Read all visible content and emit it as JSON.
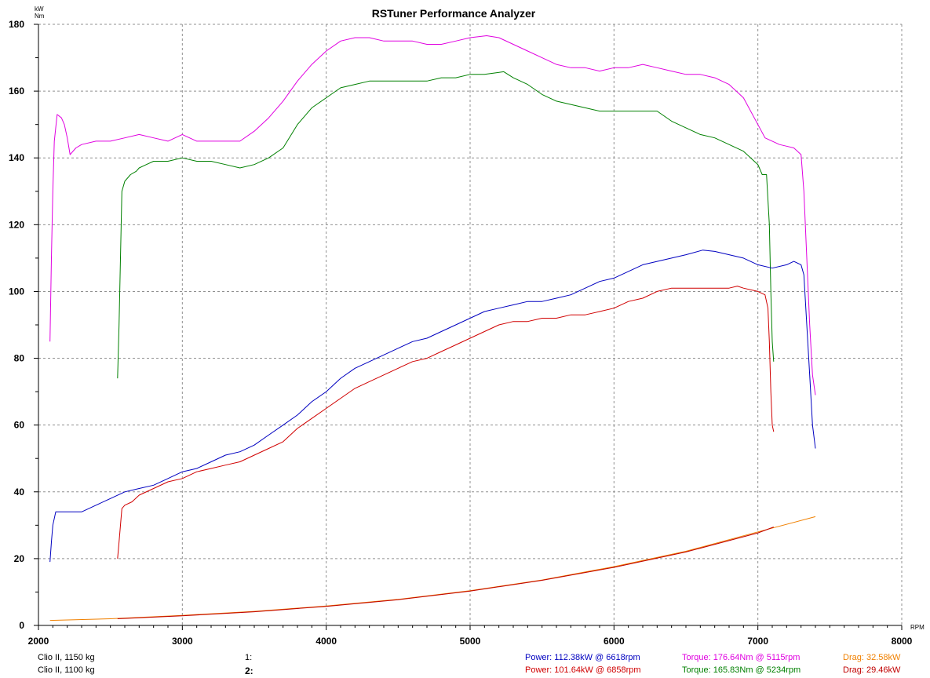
{
  "chart_data": {
    "type": "line",
    "title": "RSTuner Performance Analyzer",
    "ylabel_top": "kW",
    "ylabel_bottom": "Nm",
    "xlabel": "RPM",
    "xlim": [
      2000,
      8000
    ],
    "ylim": [
      0,
      180
    ],
    "x_ticks": [
      2000,
      3000,
      4000,
      5000,
      6000,
      7000,
      8000
    ],
    "y_ticks": [
      0,
      20,
      40,
      60,
      80,
      100,
      120,
      140,
      160,
      180
    ],
    "grid": true,
    "series": [
      {
        "name": "Torque 1",
        "color": "#e000e0",
        "x": [
          2080,
          2090,
          2100,
          2110,
          2130,
          2160,
          2180,
          2200,
          2220,
          2260,
          2300,
          2400,
          2500,
          2600,
          2700,
          2800,
          2900,
          3000,
          3100,
          3200,
          3300,
          3400,
          3500,
          3600,
          3700,
          3800,
          3900,
          4000,
          4100,
          4200,
          4300,
          4400,
          4500,
          4600,
          4700,
          4800,
          4900,
          5000,
          5115,
          5200,
          5300,
          5400,
          5500,
          5600,
          5700,
          5800,
          5900,
          6000,
          6100,
          6200,
          6300,
          6400,
          6500,
          6600,
          6700,
          6800,
          6900,
          7000,
          7050,
          7100,
          7150,
          7200,
          7250,
          7300,
          7320,
          7340,
          7360,
          7380,
          7400
        ],
        "y": [
          85,
          110,
          130,
          145,
          153,
          152,
          150,
          146,
          141,
          143,
          144,
          145,
          145,
          146,
          147,
          146,
          145,
          147,
          145,
          145,
          145,
          145,
          148,
          152,
          157,
          163,
          168,
          172,
          175,
          176,
          176,
          175,
          175,
          175,
          174,
          174,
          175,
          176,
          176.6,
          176,
          174,
          172,
          170,
          168,
          167,
          167,
          166,
          167,
          167,
          168,
          167,
          166,
          165,
          165,
          164,
          162,
          158,
          150,
          146,
          145,
          144,
          143.5,
          143,
          141,
          130,
          110,
          90,
          75,
          69
        ]
      },
      {
        "name": "Torque 2",
        "color": "#008000",
        "x": [
          2550,
          2560,
          2570,
          2580,
          2600,
          2640,
          2680,
          2700,
          2750,
          2800,
          2900,
          3000,
          3100,
          3200,
          3300,
          3400,
          3500,
          3600,
          3700,
          3800,
          3900,
          4000,
          4100,
          4200,
          4300,
          4400,
          4500,
          4600,
          4700,
          4800,
          4900,
          5000,
          5100,
          5234,
          5300,
          5400,
          5500,
          5600,
          5700,
          5800,
          5900,
          6000,
          6100,
          6200,
          6300,
          6400,
          6500,
          6600,
          6700,
          6800,
          6900,
          7000,
          7030,
          7060,
          7080,
          7090,
          7100,
          7110
        ],
        "y": [
          74,
          90,
          110,
          130,
          133,
          135,
          136,
          137,
          138,
          139,
          139,
          140,
          139,
          139,
          138,
          137,
          138,
          140,
          143,
          150,
          155,
          158,
          161,
          162,
          163,
          163,
          163,
          163,
          163,
          164,
          164,
          165,
          165,
          165.8,
          164,
          162,
          159,
          157,
          156,
          155,
          154,
          154,
          154,
          154,
          154,
          151,
          149,
          147,
          146,
          144,
          142,
          138,
          135,
          135,
          120,
          100,
          85,
          79
        ]
      },
      {
        "name": "Power 1",
        "color": "#0000c0",
        "x": [
          2080,
          2090,
          2100,
          2120,
          2150,
          2200,
          2250,
          2300,
          2400,
          2500,
          2600,
          2700,
          2800,
          2900,
          3000,
          3100,
          3200,
          3300,
          3400,
          3500,
          3600,
          3700,
          3800,
          3900,
          4000,
          4100,
          4200,
          4300,
          4400,
          4500,
          4600,
          4700,
          4800,
          4900,
          5000,
          5100,
          5200,
          5300,
          5400,
          5500,
          5600,
          5700,
          5800,
          5900,
          6000,
          6100,
          6200,
          6300,
          6400,
          6500,
          6618,
          6700,
          6800,
          6900,
          7000,
          7100,
          7200,
          7250,
          7300,
          7320,
          7340,
          7360,
          7380,
          7400
        ],
        "y": [
          19,
          25,
          30,
          34,
          34,
          34,
          34,
          34,
          36,
          38,
          40,
          41,
          42,
          44,
          46,
          47,
          49,
          51,
          52,
          54,
          57,
          60,
          63,
          67,
          70,
          74,
          77,
          79,
          81,
          83,
          85,
          86,
          88,
          90,
          92,
          94,
          95,
          96,
          97,
          97,
          98,
          99,
          101,
          103,
          104,
          106,
          108,
          109,
          110,
          111,
          112.4,
          112,
          111,
          110,
          108,
          107,
          108,
          109,
          108,
          105,
          90,
          75,
          60,
          53
        ]
      },
      {
        "name": "Power 2",
        "color": "#d00000",
        "x": [
          2550,
          2560,
          2570,
          2580,
          2600,
          2650,
          2700,
          2800,
          2900,
          3000,
          3100,
          3200,
          3300,
          3400,
          3500,
          3600,
          3700,
          3800,
          3900,
          4000,
          4100,
          4200,
          4300,
          4400,
          4500,
          4600,
          4700,
          4800,
          4900,
          5000,
          5100,
          5200,
          5300,
          5400,
          5500,
          5600,
          5700,
          5800,
          5900,
          6000,
          6100,
          6200,
          6300,
          6400,
          6500,
          6600,
          6700,
          6800,
          6858,
          6900,
          7000,
          7050,
          7070,
          7080,
          7090,
          7100,
          7110
        ],
        "y": [
          20,
          25,
          30,
          35,
          36,
          37,
          39,
          41,
          43,
          44,
          46,
          47,
          48,
          49,
          51,
          53,
          55,
          59,
          62,
          65,
          68,
          71,
          73,
          75,
          77,
          79,
          80,
          82,
          84,
          86,
          88,
          90,
          91,
          91,
          92,
          92,
          93,
          93,
          94,
          95,
          97,
          98,
          100,
          101,
          101,
          101,
          101,
          101,
          101.6,
          101,
          100,
          99,
          95,
          85,
          70,
          60,
          58
        ]
      },
      {
        "name": "Drag 1",
        "color": "#f08000",
        "x": [
          2080,
          2500,
          3000,
          3500,
          4000,
          4500,
          5000,
          5500,
          6000,
          6500,
          7000,
          7400
        ],
        "y": [
          1.5,
          2.0,
          3.0,
          4.2,
          5.8,
          7.8,
          10.4,
          13.6,
          17.6,
          22.2,
          28.0,
          32.58
        ]
      },
      {
        "name": "Drag 2",
        "color": "#c00000",
        "x": [
          2550,
          3000,
          3500,
          4000,
          4500,
          5000,
          5500,
          6000,
          6500,
          7000,
          7110
        ],
        "y": [
          2.0,
          2.9,
          4.1,
          5.7,
          7.7,
          10.3,
          13.5,
          17.4,
          22.0,
          27.7,
          29.46
        ]
      }
    ]
  },
  "footer": {
    "row1": {
      "vehicle": "Clio II, 1150 kg",
      "index": "1:",
      "power": "Power: 112.38kW @ 6618rpm",
      "torque": "Torque: 176.64Nm @ 5115rpm",
      "drag": "Drag: 32.58kW"
    },
    "row2": {
      "vehicle": "Clio II, 1100 kg",
      "index": "2:",
      "power": "Power: 101.64kW @ 6858rpm",
      "torque": "Torque: 165.83Nm @ 5234rpm",
      "drag": "Drag: 29.46kW"
    },
    "colors": {
      "power1": "#0000c0",
      "power2": "#d00000",
      "torque1": "#e000e0",
      "torque2": "#008000",
      "drag1": "#f08000",
      "drag2": "#c00000"
    }
  }
}
